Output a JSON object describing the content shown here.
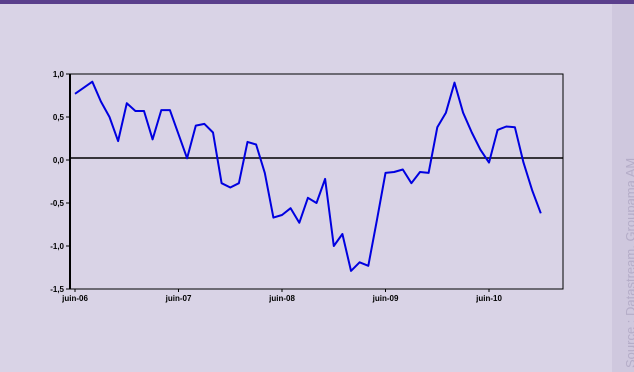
{
  "source": "Source : Datastream, Groupama AM",
  "chart_data": {
    "type": "line",
    "title": "",
    "xlabel": "",
    "ylabel": "",
    "ylim": [
      -1.5,
      1.0
    ],
    "yticks": [
      {
        "value": 1.0,
        "label": "1,0"
      },
      {
        "value": 0.5,
        "label": "0,5"
      },
      {
        "value": 0.0,
        "label": "0,0"
      },
      {
        "value": -0.5,
        "label": "-0,5"
      },
      {
        "value": -1.0,
        "label": "-1,0"
      },
      {
        "value": -1.5,
        "label": "-1,5"
      }
    ],
    "xlim": [
      0,
      56
    ],
    "xticks": [
      {
        "index": 0,
        "label": "juin-06"
      },
      {
        "index": 12,
        "label": "juin-07"
      },
      {
        "index": 24,
        "label": "juin-08"
      },
      {
        "index": 36,
        "label": "juin-09"
      },
      {
        "index": 48,
        "label": "juin-10"
      }
    ],
    "grid": false,
    "line_color": "#0000e0",
    "series": [
      {
        "values": [
          0.77,
          0.84,
          0.91,
          0.68,
          0.5,
          0.22,
          0.66,
          0.57,
          0.57,
          0.24,
          0.58,
          0.58,
          0.3,
          0.02,
          0.4,
          0.42,
          0.32,
          -0.27,
          -0.32,
          -0.27,
          0.21,
          0.18,
          -0.15,
          -0.67,
          -0.64,
          -0.56,
          -0.73,
          -0.44,
          -0.5,
          -0.22,
          -1.0,
          -0.86,
          -1.29,
          -1.19,
          -1.23,
          -0.7,
          -0.15,
          -0.14,
          -0.11,
          -0.27,
          -0.14,
          -0.15,
          0.38,
          0.55,
          0.9,
          0.55,
          0.32,
          0.12,
          -0.03,
          0.35,
          0.39,
          0.38,
          -0.03,
          -0.35,
          -0.62
        ]
      }
    ]
  }
}
